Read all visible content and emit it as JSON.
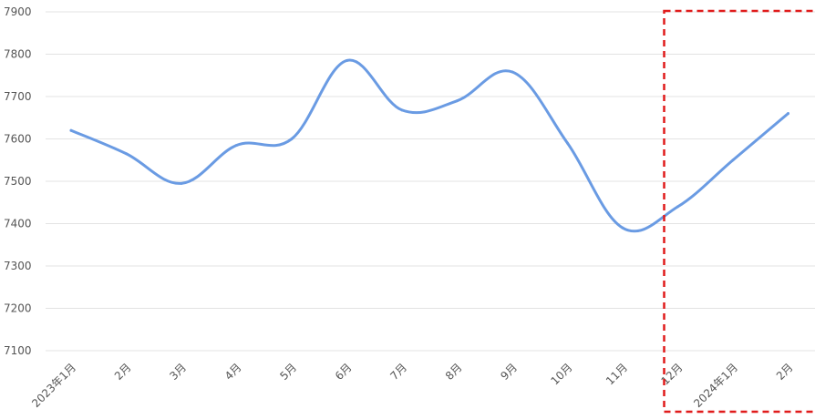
{
  "chart_data": {
    "type": "line",
    "title": "",
    "xlabel": "",
    "ylabel": "",
    "ylim": [
      7100,
      7900
    ],
    "yticks": [
      7100,
      7200,
      7300,
      7400,
      7500,
      7600,
      7700,
      7800,
      7900
    ],
    "grid": true,
    "categories": [
      "2023年1月",
      "2月",
      "3月",
      "4月",
      "5月",
      "6月",
      "7月",
      "8月",
      "9月",
      "10月",
      "11月",
      "12月",
      "2024年1月",
      "2月"
    ],
    "series": [
      {
        "values": [
          7620,
          7565,
          7495,
          7585,
          7600,
          7785,
          7668,
          7690,
          7758,
          7590,
          7390,
          7440,
          7550,
          7660
        ]
      }
    ],
    "colors": {
      "line": "#6a9be3",
      "grid": "#e3e3e3",
      "highlight_box": "#e01b1b"
    },
    "highlight_range": [
      "12月",
      "2月"
    ]
  }
}
